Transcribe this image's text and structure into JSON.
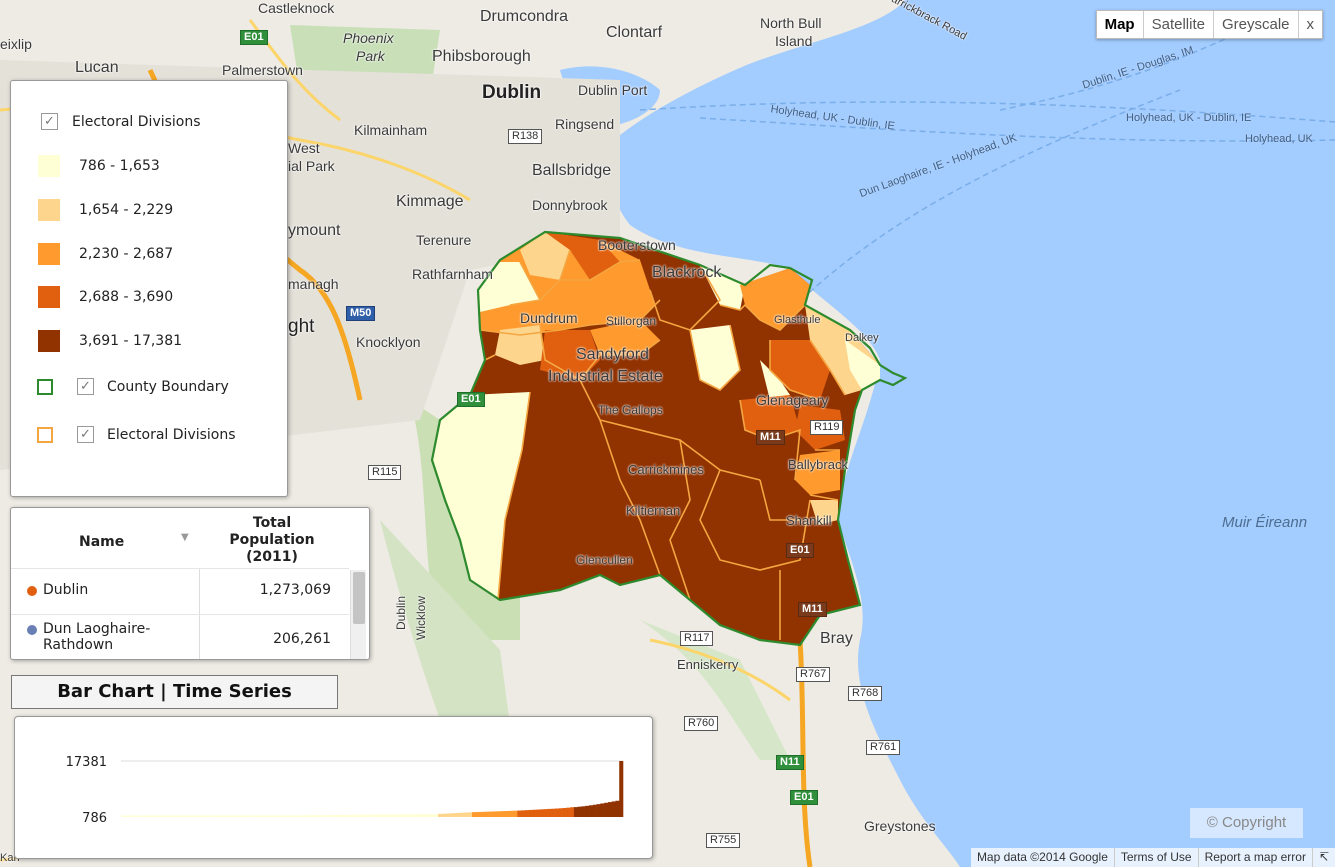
{
  "map_type": {
    "buttons": [
      "Map",
      "Satellite",
      "Greyscale"
    ],
    "close": "x",
    "selected": "Map"
  },
  "legend": {
    "header": "Electoral Divisions",
    "classes": [
      {
        "label": "786 - 1,653",
        "color": "#ffffd6"
      },
      {
        "label": "1,654 - 2,229",
        "color": "#fed58c"
      },
      {
        "label": "2,230 - 2,687",
        "color": "#fe9a2e"
      },
      {
        "label": "2,688 - 3,690",
        "color": "#e0600f"
      },
      {
        "label": "3,691 - 17,381",
        "color": "#913201"
      }
    ],
    "layers": [
      {
        "label": "County Boundary",
        "color": "#2d8a2d"
      },
      {
        "label": "Electoral Divisions",
        "color": "#f4a641"
      }
    ]
  },
  "table": {
    "col_name": "Name",
    "col_value_lines": [
      "Total",
      "Population",
      "(2011)"
    ],
    "rows": [
      {
        "name": "Dublin",
        "value": "1,273,069",
        "dot": "#e0600f"
      },
      {
        "name": "Dun Laoghaire-Rathdown",
        "value": "206,261",
        "dot": "#6a7fb5"
      }
    ]
  },
  "tabs": {
    "label": "Bar Chart | Time Series"
  },
  "chart_data": {
    "type": "bar",
    "ylim": [
      786,
      17381
    ],
    "yticks": [
      "17381",
      "786"
    ],
    "series_values": [
      820,
      830,
      840,
      850,
      860,
      870,
      880,
      890,
      900,
      910,
      920,
      930,
      940,
      950,
      960,
      970,
      980,
      990,
      1000,
      1010,
      1020,
      1030,
      1040,
      1050,
      1060,
      1070,
      1080,
      1090,
      1100,
      1110,
      1120,
      1130,
      1140,
      1150,
      1160,
      1170,
      1180,
      1190,
      1200,
      1210,
      1220,
      1230,
      1240,
      1250,
      1260,
      1270,
      1280,
      1290,
      1300,
      1310,
      1320,
      1330,
      1340,
      1350,
      1360,
      1370,
      1380,
      1390,
      1400,
      1410,
      1420,
      1430,
      1440,
      1450,
      1460,
      1470,
      1480,
      1490,
      1500,
      1510,
      1520,
      1530,
      1540,
      1550,
      1560,
      1570,
      1580,
      1590,
      1600,
      1610,
      1620,
      1630,
      1640,
      1650,
      1700,
      1760,
      1820,
      1880,
      1940,
      2000,
      2060,
      2120,
      2180,
      2230,
      2260,
      2300,
      2340,
      2380,
      2420,
      2460,
      2500,
      2540,
      2580,
      2620,
      2660,
      2700,
      2760,
      2820,
      2880,
      2940,
      3000,
      3060,
      3120,
      3180,
      3240,
      3300,
      3380,
      3460,
      3560,
      3680,
      3720,
      3840,
      3960,
      4100,
      4260,
      4420,
      4600,
      4800,
      5000,
      5200,
      5400,
      5600,
      17381
    ]
  },
  "map_labels": {
    "places": [
      "Castleknock",
      "Drumcondra",
      "Clontarf",
      "North Bull",
      "Island",
      "Phoenix",
      "Park",
      "Phibsborough",
      "Dublin",
      "Dublin Port",
      "eixlip",
      "Lucan",
      "Palmerstown",
      "Kilmainham",
      "Ringsend",
      "West",
      "ial Park",
      "Ballsbridge",
      "Kimmage",
      "Donnybrook",
      "ymount",
      "Terenure",
      "Booterstown",
      "Rathfarnham",
      "Blackrock",
      "managh",
      "Dundrum",
      "Stillorgan",
      "ght",
      "Knocklyon",
      "Sandyford",
      "Industrial Estate",
      "The Gallops",
      "Glenageary",
      "Ballybrack",
      "Carrickmines",
      "Kiltiernan",
      "Shankill",
      "Glencullen",
      "Bray",
      "Enniskerry",
      "Dublin",
      "Wicklow",
      "Greystones",
      "Kan",
      "Muir Éireann",
      "Glasthule",
      "Dalkey"
    ],
    "routes": [
      "Dublin, IE - Douglas, IM",
      "Holyhead, UK - Dublin, IE",
      "Holyhead, UK - Dublin, IE",
      "Holyhead, UK",
      "Dun Laoghaire, IE - Holyhead, UK",
      "Carrickbrack Road"
    ],
    "shields": [
      "E01",
      "R138",
      "M50",
      "R115",
      "R117",
      "R767",
      "R768",
      "R760",
      "R761",
      "N11",
      "E01",
      "R755",
      "M11",
      "R119",
      "E01",
      "M11",
      "E01"
    ]
  },
  "copyright": "© Copyright",
  "attribution": [
    "Map data ©2014 Google",
    "Terms of Use",
    "Report a map error"
  ]
}
